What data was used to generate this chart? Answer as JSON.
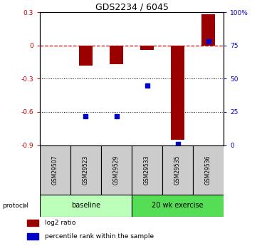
{
  "title": "GDS2234 / 6045",
  "samples": [
    "GSM29507",
    "GSM29523",
    "GSM29529",
    "GSM29533",
    "GSM29535",
    "GSM29536"
  ],
  "log2_ratio": [
    0.0,
    -0.18,
    -0.17,
    -0.04,
    -0.85,
    0.28
  ],
  "percentile_rank": [
    null,
    22,
    22,
    45,
    1,
    78
  ],
  "ylim_left": [
    -0.9,
    0.3
  ],
  "ylim_right": [
    0,
    100
  ],
  "yticks_left": [
    -0.9,
    -0.6,
    -0.3,
    0.0,
    0.3
  ],
  "ytick_labels_left": [
    "-0.9",
    "-0.6",
    "-0.3",
    "0",
    "0.3"
  ],
  "yticks_right": [
    0,
    25,
    50,
    75,
    100
  ],
  "ytick_labels_right": [
    "0",
    "25",
    "50",
    "75",
    "100%"
  ],
  "bar_color": "#9B0000",
  "dot_color": "#0000CC",
  "zero_line_color": "#CC0000",
  "grid_line_color": "#000000",
  "protocol_groups": [
    {
      "label": "baseline",
      "start": 0,
      "end": 3,
      "color": "#BBFFBB"
    },
    {
      "label": "20 wk exercise",
      "start": 3,
      "end": 6,
      "color": "#55DD55"
    }
  ],
  "protocol_label": "protocol",
  "legend_items": [
    {
      "label": "log2 ratio",
      "color": "#9B0000"
    },
    {
      "label": "percentile rank within the sample",
      "color": "#0000CC"
    }
  ],
  "bg_color": "#FFFFFF",
  "sample_box_color": "#CCCCCC"
}
